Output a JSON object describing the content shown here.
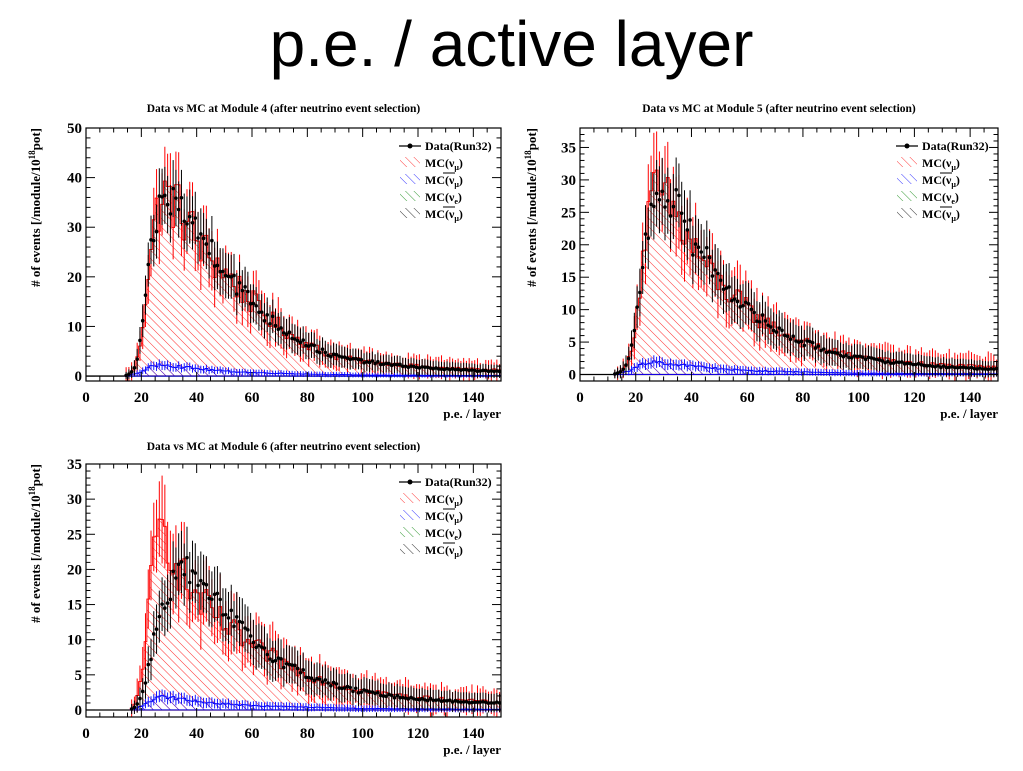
{
  "slide_title": "p.e. / active layer",
  "colors": {
    "data": "#000000",
    "mc_numu": "#ff0000",
    "mc_numubar": "#0000ff",
    "mc_nue": "#008000",
    "mc_other": "#000000"
  },
  "chart_data": [
    {
      "type": "line",
      "title": "Data vs MC at Module 4 (after neutrino event selection)",
      "xlabel": "p.e. / layer",
      "ylabel": "# of events [/module/10",
      "ylabel_sup": "18",
      "ylabel_end": "pot]",
      "xlim": [
        0,
        150
      ],
      "ylim": [
        -1,
        50
      ],
      "xticks": [
        0,
        20,
        40,
        60,
        80,
        100,
        120,
        140
      ],
      "yticks": [
        0,
        10,
        20,
        30,
        40,
        50
      ],
      "legend": {
        "placement": "top-right",
        "entries": [
          {
            "label": "Data(Run32)",
            "kind": "data"
          },
          {
            "label": "MC(ν",
            "sub": "μ",
            "kind": "numu"
          },
          {
            "label": "MC(ν",
            "sub": "μ",
            "bar": true,
            "kind": "numubar"
          },
          {
            "label": "MC(ν",
            "sub": "e",
            "kind": "nue"
          },
          {
            "label": "MC(ν",
            "sub": "μ",
            "bar": true,
            "kind": "other"
          }
        ]
      },
      "series": [
        {
          "name": "Data(Run32)",
          "kind": "data",
          "x": [
            14,
            16,
            18,
            20,
            22,
            24,
            26,
            28,
            30,
            32,
            34,
            36,
            38,
            40,
            45,
            50,
            55,
            60,
            65,
            70,
            75,
            80,
            85,
            90,
            95,
            100,
            110,
            120,
            130,
            140,
            150
          ],
          "y": [
            0,
            0.5,
            2,
            8,
            18,
            27,
            33,
            35,
            36,
            35,
            34,
            33,
            31,
            29,
            26,
            22,
            18,
            15,
            12,
            10,
            8,
            6.5,
            5,
            4,
            3.5,
            3,
            2.3,
            1.8,
            1.4,
            1.1,
            1
          ]
        },
        {
          "name": "MC(νμ)",
          "kind": "numu",
          "x": [
            14,
            16,
            18,
            20,
            22,
            24,
            26,
            28,
            30,
            32,
            34,
            36,
            38,
            40,
            45,
            50,
            55,
            60,
            65,
            70,
            75,
            80,
            85,
            90,
            95,
            100,
            110,
            120,
            130,
            140,
            150
          ],
          "y": [
            0,
            0.5,
            2,
            8,
            19,
            28,
            34,
            36,
            36,
            35,
            33,
            32,
            30,
            27,
            24,
            21,
            18,
            15,
            12,
            10,
            8,
            6.5,
            5,
            4,
            3.5,
            3,
            2.5,
            2,
            1.6,
            1.4,
            1.2
          ]
        },
        {
          "name": "MC(ν̄μ)",
          "kind": "numubar",
          "x": [
            14,
            20,
            24,
            28,
            32,
            40,
            50,
            60,
            80,
            100,
            150
          ],
          "y": [
            0,
            0.8,
            2,
            2.5,
            2,
            1.5,
            1,
            0.7,
            0.4,
            0.2,
            0.1
          ]
        }
      ]
    },
    {
      "type": "line",
      "title": "Data vs MC at Module 5 (after neutrino event selection)",
      "xlabel": "p.e. / layer",
      "ylabel": "# of events [/module/10",
      "ylabel_sup": "18",
      "ylabel_end": "pot]",
      "xlim": [
        0,
        150
      ],
      "ylim": [
        -1,
        38
      ],
      "xticks": [
        0,
        20,
        40,
        60,
        80,
        100,
        120,
        140
      ],
      "yticks": [
        0,
        5,
        10,
        15,
        20,
        25,
        30,
        35
      ],
      "legend": {
        "placement": "top-right",
        "entries": [
          {
            "label": "Data(Run32)",
            "kind": "data"
          },
          {
            "label": "MC(ν",
            "sub": "μ",
            "kind": "numu"
          },
          {
            "label": "MC(ν",
            "sub": "μ",
            "bar": true,
            "kind": "numubar"
          },
          {
            "label": "MC(ν",
            "sub": "e",
            "kind": "nue"
          },
          {
            "label": "MC(ν",
            "sub": "μ",
            "bar": true,
            "kind": "other"
          }
        ]
      },
      "series": [
        {
          "name": "Data(Run32)",
          "kind": "data",
          "x": [
            12,
            14,
            16,
            18,
            20,
            22,
            24,
            26,
            28,
            30,
            32,
            34,
            36,
            38,
            40,
            45,
            50,
            55,
            60,
            65,
            70,
            75,
            80,
            85,
            90,
            95,
            100,
            110,
            120,
            130,
            140,
            150
          ],
          "y": [
            0,
            0.3,
            1,
            3,
            8,
            15,
            22,
            27,
            28,
            28,
            27,
            26,
            25,
            23,
            21,
            18,
            15,
            12.5,
            10,
            8.5,
            7,
            6,
            5,
            4.2,
            3.5,
            3,
            2.6,
            2,
            1.6,
            1.2,
            1,
            0.8
          ]
        },
        {
          "name": "MC(νμ)",
          "kind": "numu",
          "x": [
            12,
            14,
            16,
            18,
            20,
            22,
            24,
            26,
            28,
            30,
            32,
            34,
            36,
            38,
            40,
            45,
            50,
            55,
            60,
            65,
            70,
            75,
            80,
            85,
            90,
            95,
            100,
            110,
            120,
            130,
            140,
            150
          ],
          "y": [
            0,
            0.3,
            1,
            3,
            8,
            16,
            23,
            27,
            28,
            27,
            26,
            25,
            23,
            21,
            20,
            17,
            14,
            12,
            10,
            8.5,
            7,
            6,
            5,
            4.3,
            3.6,
            3.2,
            2.8,
            2.2,
            1.8,
            1.5,
            1.3,
            1.1
          ]
        },
        {
          "name": "MC(ν̄μ)",
          "kind": "numubar",
          "x": [
            12,
            18,
            22,
            26,
            30,
            40,
            50,
            60,
            80,
            100,
            150
          ],
          "y": [
            0,
            0.6,
            1.5,
            2,
            1.8,
            1.3,
            0.9,
            0.6,
            0.4,
            0.2,
            0.1
          ]
        }
      ]
    },
    {
      "type": "line",
      "title": "Data vs MC at Module 6 (after neutrino event selection)",
      "xlabel": "p.e. / layer",
      "ylabel": "# of events [/module/10",
      "ylabel_sup": "18",
      "ylabel_end": "pot]",
      "xlim": [
        0,
        150
      ],
      "ylim": [
        -1,
        35
      ],
      "xticks": [
        0,
        20,
        40,
        60,
        80,
        100,
        120,
        140
      ],
      "yticks": [
        0,
        5,
        10,
        15,
        20,
        25,
        30,
        35
      ],
      "legend": {
        "placement": "top-right",
        "entries": [
          {
            "label": "Data(Run32)",
            "kind": "data"
          },
          {
            "label": "MC(ν",
            "sub": "μ",
            "kind": "numu"
          },
          {
            "label": "MC(ν",
            "sub": "μ",
            "bar": true,
            "kind": "numubar"
          },
          {
            "label": "MC(ν",
            "sub": "e",
            "kind": "nue"
          },
          {
            "label": "MC(ν",
            "sub": "μ",
            "bar": true,
            "kind": "other"
          }
        ]
      },
      "series": [
        {
          "name": "Data(Run32)",
          "kind": "data",
          "x": [
            16,
            18,
            20,
            22,
            24,
            26,
            28,
            30,
            32,
            34,
            36,
            38,
            40,
            45,
            50,
            55,
            60,
            65,
            70,
            75,
            80,
            85,
            90,
            95,
            100,
            110,
            120,
            130,
            140,
            150
          ],
          "y": [
            0,
            0.5,
            2,
            5,
            9,
            13,
            15,
            17,
            19,
            20,
            20,
            19,
            18,
            16,
            14,
            12,
            10,
            8.5,
            7,
            6,
            5,
            4.2,
            3.5,
            3,
            2.6,
            2,
            1.6,
            1.3,
            1.1,
            1
          ]
        },
        {
          "name": "MC(νμ)",
          "kind": "numu",
          "x": [
            16,
            18,
            20,
            22,
            24,
            26,
            28,
            30,
            32,
            34,
            36,
            38,
            40,
            45,
            50,
            55,
            60,
            65,
            70,
            75,
            80,
            85,
            90,
            95,
            100,
            110,
            120,
            130,
            140,
            150
          ],
          "y": [
            0,
            1,
            5,
            12,
            20,
            25,
            26,
            24,
            22,
            20,
            18,
            17,
            16,
            14,
            12,
            10.5,
            9,
            8,
            7,
            6,
            5,
            4.3,
            3.7,
            3.2,
            2.8,
            2.2,
            1.8,
            1.5,
            1.3,
            1.1
          ]
        },
        {
          "name": "MC(ν̄μ)",
          "kind": "numubar",
          "x": [
            16,
            20,
            24,
            28,
            32,
            40,
            50,
            60,
            80,
            100,
            150
          ],
          "y": [
            0,
            0.5,
            1.5,
            2,
            1.7,
            1.2,
            0.9,
            0.6,
            0.4,
            0.2,
            0.1
          ]
        }
      ]
    }
  ]
}
